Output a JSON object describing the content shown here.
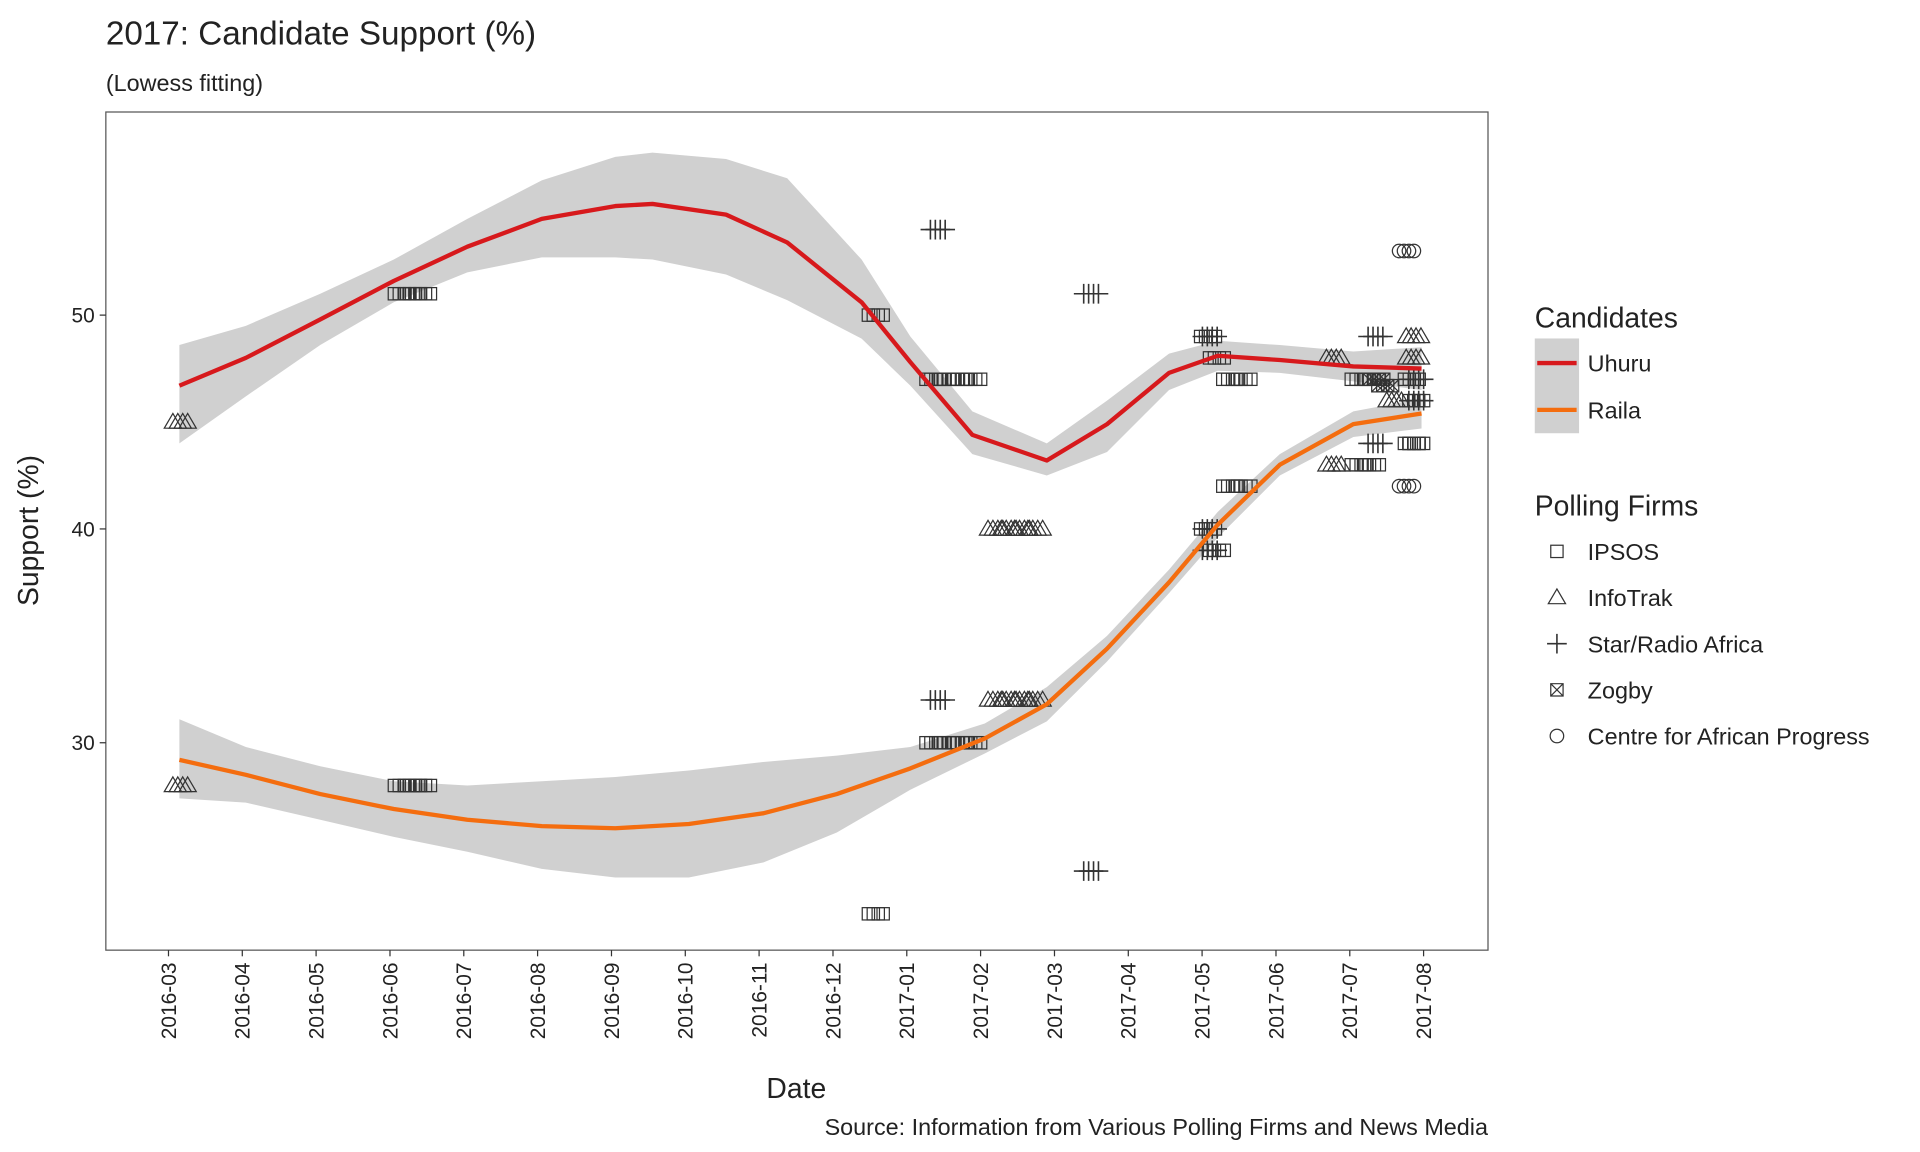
{
  "chart_data": {
    "type": "scatter",
    "title": "2017: Candidate Support (%)",
    "subtitle": "(Lowess fitting)",
    "x_label": "Date",
    "y_label": "Support (%)",
    "source": "Source: Information from Various Polling Firms and News Media",
    "xlim": [
      2016.096,
      2017.656
    ],
    "xticks": [
      {
        "value": 2016.1667,
        "label": "2016-03"
      },
      {
        "value": 2016.25,
        "label": "2016-04"
      },
      {
        "value": 2016.3333,
        "label": "2016-05"
      },
      {
        "value": 2016.4167,
        "label": "2016-06"
      },
      {
        "value": 2016.5,
        "label": "2016-07"
      },
      {
        "value": 2016.5833,
        "label": "2016-08"
      },
      {
        "value": 2016.6667,
        "label": "2016-09"
      },
      {
        "value": 2016.75,
        "label": "2016-10"
      },
      {
        "value": 2016.8333,
        "label": "2016-11"
      },
      {
        "value": 2016.9167,
        "label": "2016-12"
      },
      {
        "value": 2017.0,
        "label": "2017-01"
      },
      {
        "value": 2017.0833,
        "label": "2017-02"
      },
      {
        "value": 2017.1667,
        "label": "2017-03"
      },
      {
        "value": 2017.25,
        "label": "2017-04"
      },
      {
        "value": 2017.3333,
        "label": "2017-05"
      },
      {
        "value": 2017.4167,
        "label": "2017-06"
      },
      {
        "value": 2017.5,
        "label": "2017-07"
      },
      {
        "value": 2017.5833,
        "label": "2017-08"
      }
    ],
    "ylim": [
      20.3,
      59.5
    ],
    "yticks": [
      30,
      40,
      50
    ],
    "grid": false,
    "legend_title": "Candidates",
    "series": [
      {
        "name": "Uhuru",
        "color": "#d7191c",
        "band_color": "#d0d0d0",
        "x": [
          2016.179,
          2016.254,
          2016.338,
          2016.421,
          2016.504,
          2016.588,
          2016.671,
          2016.713,
          2016.796,
          2016.865,
          2016.949,
          2017.004,
          2017.074,
          2017.158,
          2017.226,
          2017.296,
          2017.351,
          2017.421,
          2017.504,
          2017.581
        ],
        "values": [
          46.7,
          48.0,
          49.8,
          51.6,
          53.2,
          54.5,
          55.1,
          55.2,
          54.7,
          53.4,
          50.6,
          47.8,
          44.4,
          43.2,
          44.9,
          47.3,
          48.1,
          47.9,
          47.6,
          47.5
        ],
        "lower": [
          44.0,
          46.2,
          48.6,
          50.6,
          52.0,
          52.7,
          52.7,
          52.6,
          51.9,
          50.7,
          48.9,
          46.7,
          43.5,
          42.5,
          43.6,
          46.5,
          47.4,
          47.3,
          46.9,
          46.5
        ],
        "upper": [
          48.6,
          49.5,
          51.0,
          52.6,
          54.5,
          56.3,
          57.4,
          57.6,
          57.3,
          56.4,
          52.6,
          49.0,
          45.5,
          44.0,
          46.0,
          48.2,
          48.8,
          48.6,
          48.3,
          48.5
        ]
      },
      {
        "name": "Raila",
        "color": "#f46d0f",
        "band_color": "#d0d0d0",
        "x": [
          2016.179,
          2016.254,
          2016.338,
          2016.421,
          2016.504,
          2016.588,
          2016.671,
          2016.754,
          2016.838,
          2016.921,
          2017.004,
          2017.088,
          2017.158,
          2017.226,
          2017.296,
          2017.351,
          2017.421,
          2017.504,
          2017.581
        ],
        "values": [
          29.2,
          28.5,
          27.6,
          26.9,
          26.4,
          26.1,
          26.0,
          26.2,
          26.7,
          27.6,
          28.8,
          30.2,
          31.8,
          34.4,
          37.5,
          40.2,
          43.0,
          44.9,
          45.4
        ],
        "lower": [
          27.4,
          27.2,
          26.4,
          25.6,
          24.9,
          24.1,
          23.7,
          23.7,
          24.4,
          25.8,
          27.8,
          29.5,
          31.0,
          33.8,
          37.0,
          39.6,
          42.5,
          44.3,
          44.7
        ],
        "upper": [
          31.1,
          29.8,
          28.9,
          28.2,
          28.0,
          28.2,
          28.4,
          28.7,
          29.1,
          29.4,
          29.8,
          30.9,
          32.6,
          35.0,
          38.1,
          40.8,
          43.5,
          45.5,
          46.1
        ]
      }
    ],
    "firms_title": "Polling Firms",
    "firms": [
      {
        "name": "IPSOS",
        "shape": "square",
        "x": [
          2016.43,
          2016.442,
          2016.454,
          2016.43,
          2016.442,
          2016.454,
          2016.965,
          2016.965,
          2017.03,
          2017.045,
          2017.06,
          2017.075,
          2017.03,
          2017.045,
          2017.06,
          2017.075,
          2017.34,
          2017.35,
          2017.34,
          2017.35,
          2017.365,
          2017.38,
          2017.365,
          2017.38,
          2017.51,
          2017.525,
          2017.51,
          2017.525,
          2017.57,
          2017.575,
          2017.57,
          2017.575
        ],
        "y": [
          51,
          51,
          51,
          28,
          28,
          28,
          50,
          22,
          47,
          47,
          47,
          47,
          30,
          30,
          30,
          30,
          49,
          48,
          40,
          39,
          47,
          47,
          42,
          42,
          47,
          47,
          43,
          43,
          47,
          46,
          44,
          44
        ]
      },
      {
        "name": "InfoTrak",
        "shape": "triangle",
        "x": [
          2016.18,
          2016.18,
          2017.1,
          2017.115,
          2017.13,
          2017.145,
          2017.1,
          2017.115,
          2017.13,
          2017.145,
          2017.482,
          2017.482,
          2017.55,
          2017.572,
          2017.572
        ],
        "y": [
          45,
          28,
          40,
          40,
          40,
          40,
          32,
          32,
          32,
          32,
          48,
          43,
          46,
          49,
          48
        ]
      },
      {
        "name": "Star/Radio Africa",
        "shape": "plus",
        "x": [
          2017.035,
          2017.035,
          2017.208,
          2017.208,
          2017.342,
          2017.342,
          2017.342,
          2017.529,
          2017.529,
          2017.575,
          2017.575
        ],
        "y": [
          54,
          32,
          51,
          24,
          49,
          40,
          39,
          49,
          44,
          47,
          46
        ]
      },
      {
        "name": "Zogby",
        "shape": "xsquare",
        "x": [
          2017.53,
          2017.54
        ],
        "y": [
          47,
          46.7
        ]
      },
      {
        "name": "Centre for African Progress",
        "shape": "circle",
        "x": [
          2017.564,
          2017.564
        ],
        "y": [
          53,
          42
        ]
      }
    ]
  }
}
